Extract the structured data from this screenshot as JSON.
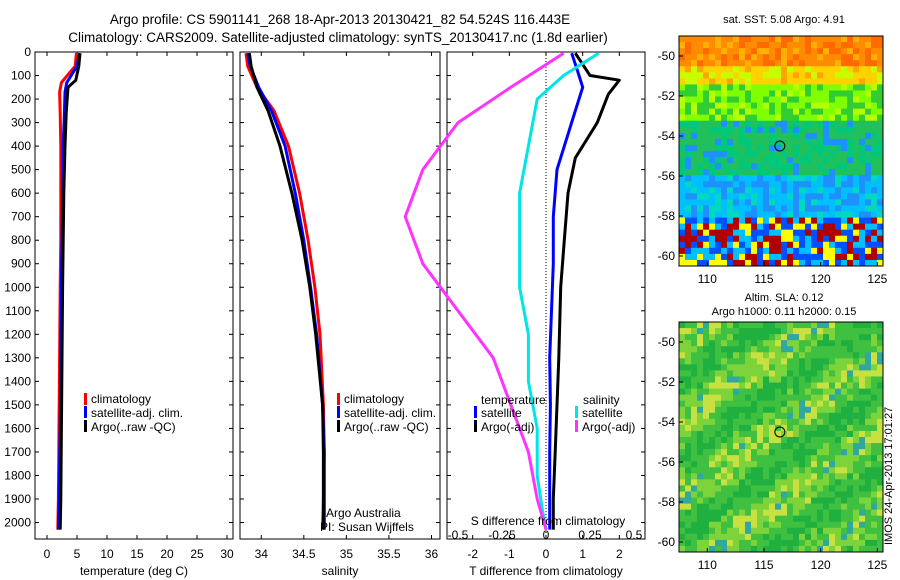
{
  "header": {
    "line1": "Argo profile: CS 5901141_268 18-Apr-2013 20130421_82 54.524S 116.443E",
    "line2": "Climatology: CARS2009. Satellite-adjusted climatology: synTS_20130417.nc (1.8d earlier)"
  },
  "colors": {
    "climatology": "#ff0000",
    "satellite": "#0000ff",
    "argo": "#000000",
    "sal_satellite": "#00e5e5",
    "sal_argo": "#ff33ff"
  },
  "chart_data": [
    {
      "type": "line",
      "id": "temperature",
      "xlabel": "temperature (deg C)",
      "ylabel": "",
      "xlim": [
        -2,
        31
      ],
      "ylim": [
        0,
        2070
      ],
      "y_reversed": true,
      "xticks": [
        "0",
        "5",
        "10",
        "15",
        "20",
        "25",
        "30"
      ],
      "yticks": [
        "0",
        "100",
        "200",
        "300",
        "400",
        "500",
        "600",
        "700",
        "800",
        "900",
        "1000",
        "1100",
        "1200",
        "1300",
        "1400",
        "1500",
        "1600",
        "1700",
        "1800",
        "1900",
        "2000"
      ],
      "legend": [
        "climatology",
        "satellite-adj. clim.",
        "Argo(..raw -QC)"
      ],
      "series": [
        {
          "name": "climatology",
          "color_key": "climatology",
          "x": [
            4.9,
            4.7,
            2.4,
            2.1,
            2.2,
            2.3,
            2.3,
            2.3,
            2.2,
            2.1,
            2.0,
            1.9,
            1.8
          ],
          "y": [
            5,
            60,
            130,
            170,
            260,
            400,
            600,
            800,
            1000,
            1300,
            1600,
            1900,
            2030
          ]
        },
        {
          "name": "satellite-adj. clim.",
          "color_key": "satellite",
          "x": [
            5.4,
            5.0,
            3.3,
            3.0,
            2.9,
            2.7,
            2.6,
            2.5,
            2.4,
            2.3,
            2.2,
            2.0,
            1.9
          ],
          "y": [
            5,
            60,
            130,
            170,
            260,
            400,
            600,
            800,
            1000,
            1300,
            1600,
            1900,
            2030
          ]
        },
        {
          "name": "Argo(..raw -QC)",
          "color_key": "argo",
          "x": [
            5.5,
            5.3,
            4.8,
            3.5,
            3.2,
            3.0,
            2.8,
            2.7,
            2.6,
            2.5,
            2.4,
            2.3,
            2.2
          ],
          "y": [
            5,
            60,
            120,
            150,
            260,
            400,
            600,
            800,
            1000,
            1300,
            1600,
            1900,
            2030
          ]
        }
      ]
    },
    {
      "type": "line",
      "id": "salinity",
      "xlabel": "salinity",
      "ylabel": "",
      "xlim": [
        33.75,
        36.1
      ],
      "ylim": [
        0,
        2070
      ],
      "y_reversed": true,
      "xticks": [
        "34",
        "34.5",
        "35",
        "35.5",
        "36"
      ],
      "legend": [
        "climatology",
        "satellite-adj. clim.",
        "Argo(..raw -QC)"
      ],
      "annotations": [
        "Argo Australia",
        "PI: Susan Wijffels"
      ],
      "series": [
        {
          "name": "climatology",
          "color_key": "climatology",
          "x": [
            33.82,
            33.84,
            33.95,
            34.15,
            34.32,
            34.45,
            34.55,
            34.63,
            34.69,
            34.73,
            34.74,
            34.73,
            34.72
          ],
          "y": [
            5,
            60,
            150,
            250,
            400,
            600,
            800,
            1000,
            1200,
            1500,
            1700,
            1900,
            2030
          ]
        },
        {
          "name": "satellite-adj. clim.",
          "color_key": "satellite",
          "x": [
            33.84,
            33.87,
            33.97,
            34.12,
            34.28,
            34.4,
            34.5,
            34.58,
            34.65,
            34.72,
            34.74,
            34.74,
            34.74
          ],
          "y": [
            5,
            60,
            150,
            250,
            400,
            600,
            800,
            1000,
            1200,
            1500,
            1700,
            1900,
            2030
          ]
        },
        {
          "name": "Argo(..raw -QC)",
          "color_key": "argo",
          "x": [
            33.86,
            33.88,
            33.95,
            34.08,
            34.22,
            34.36,
            34.48,
            34.57,
            34.64,
            34.72,
            34.73,
            34.73,
            34.73
          ],
          "y": [
            5,
            60,
            150,
            250,
            400,
            600,
            800,
            1000,
            1200,
            1500,
            1700,
            1900,
            2030
          ]
        }
      ]
    },
    {
      "type": "line",
      "id": "difference",
      "xlabel": "T difference from climatology",
      "xlabel_top": "S difference from climatology",
      "xlim": [
        -2.7,
        2.7
      ],
      "ylim": [
        0,
        2070
      ],
      "y_reversed": true,
      "xticks": [
        "-2",
        "-1",
        "0",
        "1",
        "2"
      ],
      "s_ticks": [
        "-0.5",
        "-0.25",
        "0",
        "0.25",
        "0.5"
      ],
      "legend_titles": [
        "temperature",
        "salinity"
      ],
      "legend": [
        "satellite",
        "Argo(-adj)",
        "satellite",
        "Argo(-adj)"
      ],
      "series": [
        {
          "name": "satellite",
          "kind": "temperature",
          "color_key": "satellite",
          "x": [
            0.7,
            0.9,
            1.0,
            0.8,
            0.6,
            0.3,
            0.2,
            0.2,
            0.15,
            0.1,
            0.12,
            0.1,
            0.1,
            0.1
          ],
          "y": [
            5,
            100,
            150,
            250,
            350,
            500,
            700,
            900,
            1100,
            1300,
            1500,
            1700,
            1900,
            2030
          ]
        },
        {
          "name": "Argo(-adj)",
          "kind": "temperature",
          "color_key": "argo",
          "x": [
            0.8,
            1.2,
            2.0,
            1.7,
            1.4,
            0.8,
            0.6,
            0.5,
            0.4,
            0.35,
            0.3,
            0.25,
            0.2,
            0.2
          ],
          "y": [
            5,
            100,
            120,
            180,
            300,
            450,
            600,
            800,
            1000,
            1300,
            1500,
            1700,
            1900,
            2030
          ]
        },
        {
          "name": "satellite",
          "kind": "salinity",
          "color_key": "sal_satellite",
          "x": [
            0.3,
            0.1,
            -0.05,
            -0.1,
            -0.15,
            -0.15,
            -0.15,
            -0.1,
            -0.1,
            -0.05,
            -0.05,
            -0.02,
            0.0
          ],
          "y": [
            5,
            100,
            200,
            400,
            600,
            800,
            1000,
            1200,
            1400,
            1600,
            1800,
            1950,
            2030
          ]
        },
        {
          "name": "Argo(-adj)",
          "kind": "salinity",
          "color_key": "sal_argo",
          "x": [
            0.1,
            -0.2,
            -0.5,
            -0.7,
            -0.8,
            -0.7,
            -0.5,
            -0.3,
            -0.2,
            -0.1,
            -0.05,
            0.0
          ],
          "y": [
            5,
            150,
            300,
            500,
            700,
            900,
            1100,
            1300,
            1500,
            1700,
            1900,
            2030
          ]
        }
      ]
    },
    {
      "type": "heatmap",
      "id": "sst_map",
      "title": "sat. SST: 5.08 Argo: 4.91",
      "xlim": [
        107.5,
        125.5
      ],
      "ylim": [
        -60.5,
        -49
      ],
      "xticks": [
        "110",
        "115",
        "120",
        "125"
      ],
      "yticks": [
        "-50",
        "-52",
        "-54",
        "-56",
        "-58",
        "-60"
      ],
      "marker": {
        "lon": 116.4,
        "lat": -54.5
      }
    },
    {
      "type": "heatmap",
      "id": "sla_map",
      "title": "Altim. SLA: 0.12",
      "subtitle": "Argo h1000: 0.11 h2000: 0.15",
      "xlim": [
        107.5,
        125.5
      ],
      "ylim": [
        -60.5,
        -49
      ],
      "xticks": [
        "110",
        "115",
        "120",
        "125"
      ],
      "yticks": [
        "-50",
        "-52",
        "-54",
        "-56",
        "-58",
        "-60"
      ],
      "marker": {
        "lon": 116.4,
        "lat": -54.5
      },
      "side_label": "IMOS 24-Apr-2013 17:01:27"
    }
  ]
}
